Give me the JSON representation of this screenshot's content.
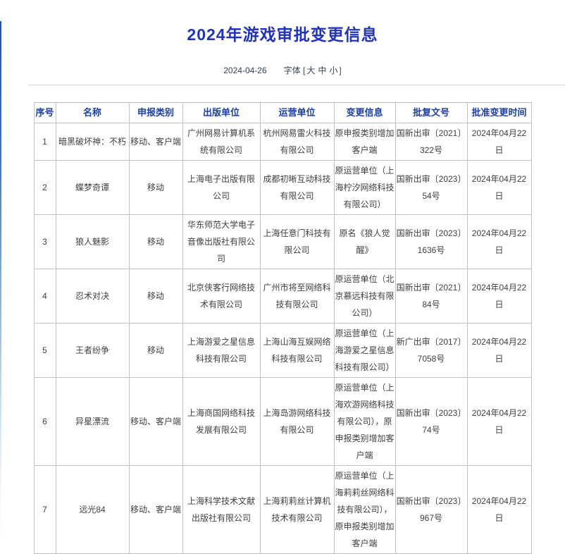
{
  "header": {
    "title": "2024年游戏审批变更信息",
    "date": "2024-04-26",
    "font_label": "字体",
    "bracket_open": "[",
    "bracket_close": "]",
    "font_sizes": {
      "large": "大",
      "medium": "中",
      "small": "小"
    }
  },
  "colors": {
    "title_blue": "#2233b8",
    "header_blue": "#1c40a5",
    "meta_text": "#33425c",
    "body_text": "#404040",
    "table_border": "#c0c0c0",
    "accent_bar_blue": "#0f5cb0"
  },
  "table": {
    "fields": [
      "no",
      "name",
      "category",
      "publisher",
      "operator",
      "change",
      "approval_no",
      "approved_date"
    ],
    "headers": [
      "序号",
      "名称",
      "申报类别",
      "出版单位",
      "运营单位",
      "变更信息",
      "批复文号",
      "批准变更时间"
    ],
    "rows": [
      {
        "no": "1",
        "name": "暗黑破坏神：不朽",
        "category": "移动、客户端",
        "publisher": "广州网易计算机系统有限公司",
        "operator": "杭州网易雷火科技有限公司",
        "change": "原申报类别增加客户端",
        "approval_no": "国新出审〔2021〕322号",
        "approved_date": "2024年04月22日"
      },
      {
        "no": "2",
        "name": "蝶梦奇谭",
        "category": "移动",
        "publisher": "上海电子出版有限公司",
        "operator": "成都初晰互动科技有限公司",
        "change": "原运营单位（上海柠汐网络科技有限公司）",
        "approval_no": "国新出审〔2023〕54号",
        "approved_date": "2024年04月22日"
      },
      {
        "no": "3",
        "name": "狼人魅影",
        "category": "移动",
        "publisher": "华东师范大学电子音像出版社有限公司",
        "operator": "上海任意门科技有限公司",
        "change": "原名《狼人觉醒》",
        "approval_no": "国新出审〔2023〕1636号",
        "approved_date": "2024年04月22日"
      },
      {
        "no": "4",
        "name": "忍术对决",
        "category": "移动",
        "publisher": "北京侠客行网络技术有限公司",
        "operator": "广州市将至网络科技有限公司",
        "change": "原运营单位（北京慕远科技有限公司）",
        "approval_no": "国新出审〔2021〕84号",
        "approved_date": "2024年04月22日"
      },
      {
        "no": "5",
        "name": "王者纷争",
        "category": "移动",
        "publisher": "上海游爱之星信息科技有限公司",
        "operator": "上海山海互娱网络科技有限公司",
        "change": "原运营单位（上海游爱之星信息科技有限公司）",
        "approval_no": "新广出审〔2017〕7058号",
        "approved_date": "2024年04月22日"
      },
      {
        "no": "6",
        "name": "异星漂流",
        "category": "移动、客户端",
        "publisher": "上海商国网络科技发展有限公司",
        "operator": "上海岛游网络科技有限公司",
        "change": "原运营单位（上海欢游网络科技有限公司），原申报类别增加客户端",
        "approval_no": "国新出审〔2023〕74号",
        "approved_date": "2024年04月22日"
      },
      {
        "no": "7",
        "name": "远光84",
        "category": "移动、客户端",
        "publisher": "上海科学技术文献出版社有限公司",
        "operator": "上海莉莉丝计算机技术有限公司",
        "change": "原运营单位（上海莉莉丝网络科技有限公司），原申报类别增加客户端",
        "approval_no": "国新出审〔2023〕967号",
        "approved_date": "2024年04月22日"
      }
    ]
  }
}
